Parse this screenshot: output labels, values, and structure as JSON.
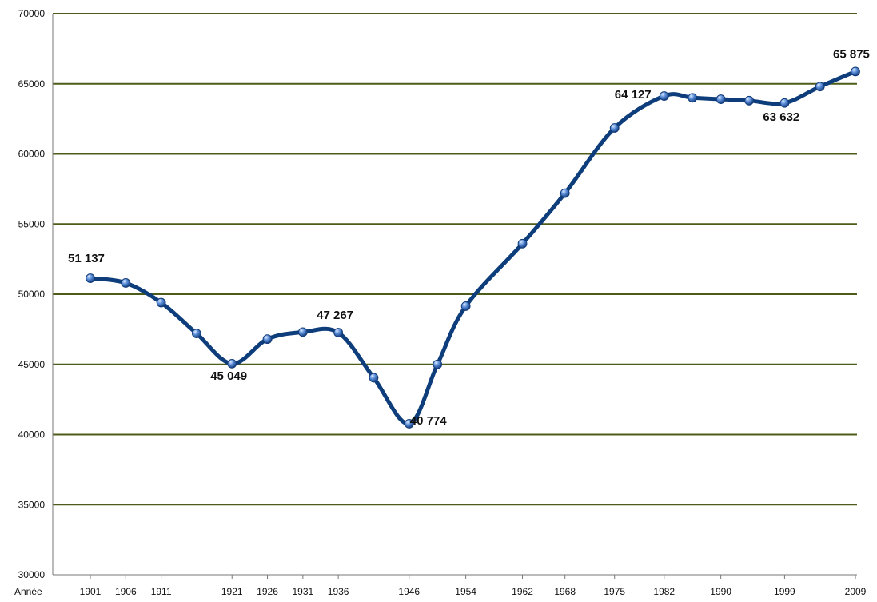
{
  "chart_data": {
    "type": "line",
    "x_prefix_label": "Année",
    "ylim": [
      30000,
      70000
    ],
    "yticks": [
      30000,
      35000,
      40000,
      45000,
      50000,
      55000,
      60000,
      65000,
      70000
    ],
    "xticks": [
      1901,
      1906,
      1911,
      1921,
      1926,
      1931,
      1936,
      1946,
      1954,
      1962,
      1968,
      1975,
      1982,
      1990,
      1999,
      2009
    ],
    "grid": true,
    "series": [
      {
        "x": [
          1901,
          1906,
          1911,
          1916,
          1921,
          1926,
          1931,
          1936,
          1941,
          1946,
          1950,
          1954,
          1962,
          1968,
          1975,
          1982,
          1986,
          1990,
          1994,
          1999,
          2004,
          2009
        ],
        "y": [
          51137,
          50800,
          49400,
          47200,
          45049,
          46800,
          47300,
          47267,
          44050,
          40774,
          45000,
          49150,
          53600,
          57200,
          61850,
          64127,
          64000,
          63900,
          63800,
          63632,
          64800,
          65875
        ]
      }
    ],
    "data_labels": [
      {
        "x": 1901,
        "text": "51 137"
      },
      {
        "x": 1921,
        "text": "45 049"
      },
      {
        "x": 1936,
        "text": "47 267"
      },
      {
        "x": 1946,
        "text": "40 774"
      },
      {
        "x": 1982,
        "text": "64 127"
      },
      {
        "x": 1999,
        "text": "63 632"
      },
      {
        "x": 2009,
        "text": "65 875"
      }
    ],
    "colors": {
      "line": "#0d3d7a",
      "marker": "#3d74c6",
      "grid": "#4d5d19",
      "axis": "#777777"
    }
  }
}
